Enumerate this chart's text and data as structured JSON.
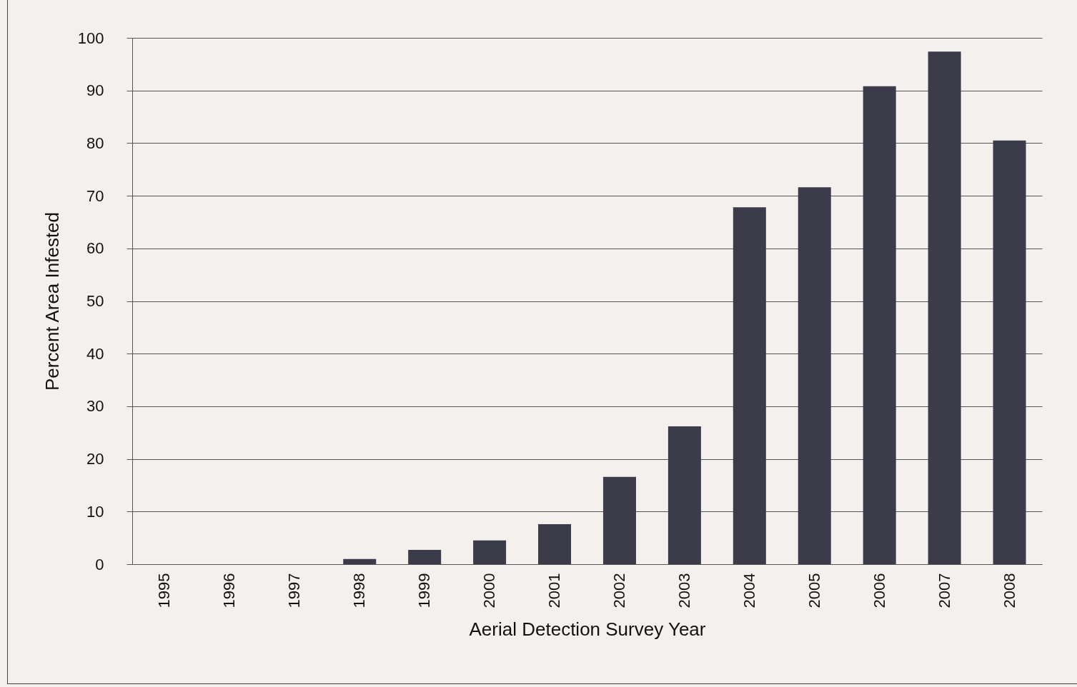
{
  "chart_data": {
    "type": "bar",
    "xlabel": "Aerial Detection Survey Year",
    "ylabel": "Percent Area Infested",
    "categories": [
      "1995",
      "1996",
      "1997",
      "1998",
      "1999",
      "2000",
      "2001",
      "2002",
      "2003",
      "2004",
      "2005",
      "2006",
      "2007",
      "2008"
    ],
    "values": [
      0,
      0,
      0,
      1,
      2.7,
      4.5,
      7.6,
      16.6,
      26.2,
      67.8,
      71.6,
      90.8,
      97.4,
      80.5
    ],
    "color": "#3b3b4a",
    "ylim": [
      0,
      100
    ],
    "yticks": [
      0,
      10,
      20,
      30,
      40,
      50,
      60,
      70,
      80,
      90,
      100
    ],
    "grid": "y"
  }
}
